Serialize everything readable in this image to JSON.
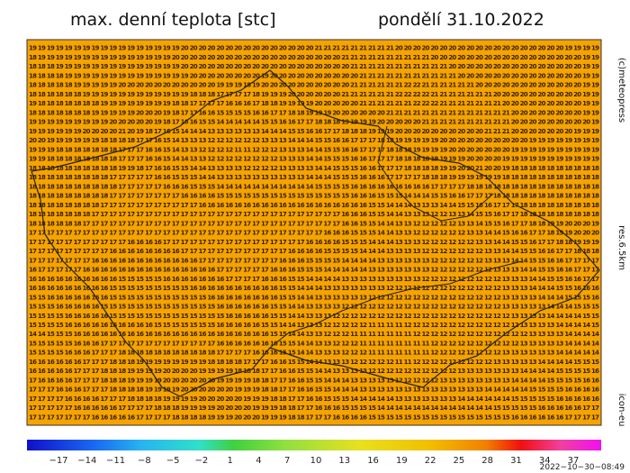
{
  "header": {
    "title": "max. denní teplota [stc]",
    "date": "pondělí 31.10.2022"
  },
  "side": {
    "copyright": "(c)meteopress",
    "resolution": "res.6.5km",
    "model": "icon-eu"
  },
  "colorbar_labels": [
    "−17",
    "−14",
    "−11",
    "−8",
    "−5",
    "−2",
    "1",
    "4",
    "7",
    "10",
    "13",
    "16",
    "19",
    "22",
    "25",
    "28",
    "31",
    "34",
    "37"
  ],
  "timestamp": "2022−10−30−08:49",
  "grid": [
    "19 19 19 19 19 19 19 19 19 19 19 19 19 19 19 19 19 20 20 20 20 20 20 20 20 20 20 20 20 20 20 20 21 21 21 21 21 21 21 21 21 20 20 20 20 20 20 20 20 20 20 20 20 20 20 20 20 20 20 20 19 19 19 19",
    "18 19 19 19 19 19 19 19 19 19 19 19 19 19 19 19 20 20 20 20 20 20 20 20 20 20 20 20 20 20 20 20 20 20 20 21 21 21 21 21 21 21 21 21 21 20 20 20 20 20 20 20 20 20 20 20 20 20 20 20 20 20 19 19",
    "18 18 18 19 19 19 19 19 19 19 19 19 19 19 19 19 19 20 20 20 20 20 20 20 20 20 20 20 20 20 20 20 20 20 20 20 21 21 21 21 21 21 21 21 21 21 21 20 20 20 20 20 20 20 20 20 20 20 20 20 20 20 19 19",
    "18 18 18 18 19 19 19 19 19 19 19 19 19 19 19 19 19 19 20 20 20 20 20 20 20 20 19 20 20 20 20 20 20 20 20 20 20 21 21 21 21 21 21 21 21 21 21 21 20 20 20 20 20 20 20 20 20 20 20 20 20 20 19 19",
    "18 18 18 18 18 19 19 19 19 19 20 20 20 20 20 20 20 20 20 20 20 19 19 19 18 19 20 20 20 20 20 20 20 20 20 20 21 21 21 21 21 21 22 22 21 21 21 21 21 21 20 20 20 20 20 20 20 20 20 20 20 20 19 19",
    "18 18 18 18 18 18 19 19 19 19 19 19 19 19 19 19 19 19 18 18 18 17 17 17 17 18 19 19 19 20 20 20 20 20 20 21 21 21 21 21 21 22 22 22 22 21 21 21 21 21 21 21 20 20 20 20 20 20 20 20 20 20 19 19",
    "19 18 18 18 18 18 18 18 19 19 19 19 19 19 19 19 18 18 17 17 17 17 16 16 16 17 18 18 19 19 19 19 20 20 20 20 20 21 21 21 21 21 21 22 22 22 21 21 21 21 21 21 21 20 20 20 20 20 20 20 20 20 19 19",
    "18 18 18 18 18 18 18 19 19 19 19 19 20 20 20 19 18 17 17 16 16 15 15 15 15 16 16 17 17 18 18 19 19 19 20 20 20 20 20 20 21 21 21 21 21 21 21 21 21 21 21 21 21 21 20 20 20 20 20 20 20 20 19 19",
    "19 19 19 19 19 19 19 19 19 20 20 20 20 20 19 18 17 16 16 15 15 14 14 14 14 14 15 15 16 16 17 17 18 18 18 19 19 19 19 20 20 20 20 20 21 21 21 21 21 21 21 21 21 21 20 20 20 20 20 20 20 20 20 19",
    "19 19 19 19 19 19 20 20 20 20 21 20 19 18 17 16 15 14 14 14 13 13 13 13 13 13 14 14 14 15 15 16 16 17 17 18 18 18 19 19 19 20 20 20 20 20 20 20 20 20 20 21 21 21 20 20 20 20 20 20 20 19 19 19",
    "20 20 19 19 19 19 19 19 18 18 18 18 17 17 16 15 14 13 13 13 12 12 12 12 12 12 13 13 13 14 14 14 15 15 16 16 17 17 17 18 18 19 19 19 19 19 20 20 20 20 20 20 20 20 20 20 19 19 19 19 19 19 19 19",
    "19 19 19 18 18 18 18 18 18 18 17 17 17 16 16 15 14 13 13 12 12 12 12 11 11 12 12 12 13 13 13 14 14 15 15 16 16 17 17 17 18 18 18 19 19 19 19 20 20 20 20 20 20 20 19 19 19 19 19 19 19 19 19 19",
    "19 19 18 18 18 18 18 18 18 18 17 17 17 16 16 15 14 14 13 13 12 12 12 12 12 12 12 12 13 13 13 14 14 15 15 15 16 16 17 17 17 18 18 18 18 19 19 19 19 20 20 20 20 19 19 19 19 19 19 19 19 19 19 19",
    "18 18 18 18 18 18 18 18 18 18 19 19 18 17 16 16 15 15 14 14 13 13 13 13 12 12 12 12 13 13 13 13 14 14 15 15 15 16 16 17 17 17 18 18 18 18 19 19 20 20 21 20 20 19 18 18 18 18 18 18 18 18 18 18",
    "18 18 18 18 18 18 18 18 18 17 17 17 17 17 16 16 15 15 15 14 14 13 13 13 13 13 13 13 13 13 13 14 14 14 15 15 15 16 16 16 17 17 17 17 18 18 18 19 19 19 19 19 19 18 18 18 18 18 18 18 18 18 18 18",
    "18 18 18 18 18 18 18 18 18 18 17 17 17 17 17 16 16 16 15 15 15 14 14 14 14 14 14 14 14 14 14 14 15 15 15 15 16 16 16 16 16 16 16 16 16 17 17 17 17 18 18 18 18 18 18 18 18 18 18 18 18 18 18 18",
    "18 18 18 18 18 18 18 18 18 17 17 17 17 17 17 17 17 16 16 16 16 15 15 15 15 15 15 15 15 15 15 15 15 15 15 15 16 16 16 15 15 15 14 14 14 15 15 16 16 17 17 17 18 18 18 18 18 18 18 18 18 18 18 18",
    "18 18 18 18 18 18 18 18 17 17 17 17 17 17 17 17 17 17 17 16 16 16 16 16 16 16 16 16 16 16 16 16 16 16 16 16 16 16 15 15 14 14 14 13 13 13 14 14 15 15 16 16 17 17 17 18 18 18 18 18 18 18 18 18",
    "18 18 18 18 18 18 18 17 17 17 17 17 17 17 17 17 17 17 17 17 17 17 17 17 17 17 17 17 17 17 17 17 17 17 17 16 16 16 15 15 14 14 13 13 13 12 12 13 13 14 15 15 16 17 17 18 18 18 18 18 18 18 18 18",
    "18 18 18 18 18 18 17 17 17 17 17 17 17 17 17 17 17 17 17 17 17 17 17 17 17 17 17 17 17 17 17 17 17 17 17 16 16 15 15 14 14 13 13 12 12 12 12 12 13 13 14 15 15 16 17 17 18 18 19 19 20 20 20 19",
    "17 17 17 17 17 17 17 17 17 17 17 17 17 17 17 17 17 17 17 17 17 17 17 17 17 17 17 17 17 17 17 17 17 16 16 16 15 15 15 14 14 13 13 12 12 12 12 12 12 13 13 14 14 15 16 16 17 17 18 19 19 20 20 20",
    "17 17 17 17 17 17 17 17 17 17 17 16 16 16 16 17 17 17 17 17 17 17 17 17 17 17 17 17 17 17 17 16 16 16 16 15 15 15 14 14 14 13 13 13 12 12 12 12 12 12 13 13 14 14 15 15 16 17 17 18 18 19 19 19",
    "17 17 17 17 17 17 17 17 17 16 16 16 16 16 16 16 16 17 17 17 17 17 17 17 17 17 17 17 17 16 16 16 16 15 15 15 15 14 14 14 13 13 13 13 12 12 12 12 12 12 12 13 13 14 14 15 15 16 16 17 17 18 18 18",
    "17 17 17 17 17 17 17 16 16 16 16 16 16 16 16 16 16 16 16 17 17 17 17 17 17 17 17 17 16 16 16 15 15 15 15 14 14 14 14 13 13 13 13 13 13 12 12 12 12 12 12 13 13 13 14 14 15 15 16 16 17 17 17 17",
    "16 17 17 17 17 17 16 16 16 16 16 16 16 16 16 16 16 16 16 16 16 17 17 17 17 17 17 16 16 16 15 15 15 14 14 14 14 14 13 13 13 13 13 13 13 12 12 12 12 12 12 12 13 13 13 14 14 15 15 16 16 17 17 17",
    "16 16 16 16 16 16 16 16 16 16 15 15 15 15 15 16 16 16 16 16 16 16 17 17 17 17 16 16 16 15 15 14 14 14 14 13 13 13 13 13 13 13 13 13 12 12 12 12 12 12 12 12 12 13 13 13 14 14 15 15 16 16 17 17",
    "16 16 16 16 16 16 16 16 16 15 15 15 15 15 15 15 15 15 16 16 16 16 16 16 16 16 16 16 15 15 14 14 14 13 13 13 13 13 13 13 12 12 12 12 12 12 12 12 12 12 12 12 12 13 13 13 14 14 14 15 15 16 16 16",
    "15 15 16 16 16 16 16 16 16 15 15 15 15 15 15 15 15 15 15 15 16 16 16 16 16 16 16 16 15 15 14 14 13 13 13 13 13 13 12 12 12 12 12 12 12 12 12 12 12 12 12 12 12 13 13 13 13 14 14 14 15 15 15 16",
    "15 15 15 16 16 16 16 16 15 15 15 15 15 15 15 15 15 15 15 15 15 16 16 16 16 16 16 15 15 14 14 13 13 13 13 12 12 12 12 12 12 12 12 12 12 12 12 12 12 12 12 12 12 13 13 13 13 13 14 14 14 15 15 15",
    "15 15 15 15 16 16 16 16 16 15 15 15 15 15 15 15 15 15 15 15 15 15 16 16 16 16 16 15 15 14 14 13 13 13 12 12 12 12 12 12 12 12 12 12 12 12 12 12 12 12 12 12 12 12 13 13 13 13 14 14 14 14 15 15",
    "15 15 15 15 16 16 16 16 16 16 16 16 16 16 15 15 15 15 15 15 15 16 16 16 16 16 15 15 14 14 13 13 13 12 12 12 12 12 11 11 11 11 12 12 12 12 12 12 12 12 12 12 12 12 12 13 13 13 13 14 14 14 14 15",
    "14 14 15 15 15 16 16 16 16 16 16 16 16 16 16 16 16 16 16 16 16 16 16 16 16 16 16 15 15 14 14 13 13 12 12 12 11 11 11 11 11 11 11 12 12 12 12 12 12 12 12 12 12 12 12 12 13 13 13 13 14 14 14 14",
    "15 15 15 15 15 16 16 16 17 17 17 17 17 17 17 17 17 17 17 17 17 16 16 16 16 16 16 16 15 15 14 14 13 13 12 12 12 11 11 11 11 11 11 11 11 12 12 12 12 12 12 12 12 12 12 13 13 13 13 13 14 14 14 14",
    "15 15 15 15 16 16 16 17 17 17 18 18 18 18 18 18 18 18 18 18 18 17 17 17 17 16 16 16 15 15 14 14 13 13 13 12 12 12 11 11 11 11 11 11 11 12 12 12 12 12 12 12 12 13 13 13 13 13 13 14 14 14 14 14",
    "16 16 16 16 16 16 17 17 17 18 18 18 19 19 19 19 19 19 19 19 18 18 18 18 17 17 17 16 16 15 15 14 14 13 13 13 12 12 12 12 12 11 11 12 12 12 12 12 12 12 12 12 13 13 13 13 13 14 14 14 14 15 15 15",
    "16 16 16 16 16 17 17 17 18 18 18 19 19 19 19 20 20 20 20 19 19 19 19 18 18 18 17 17 16 16 15 15 14 14 13 13 13 13 12 12 12 12 12 12 12 12 12 12 13 13 13 13 13 13 13 14 14 14 14 15 15 15 15 16",
    "17 16 16 16 16 17 17 17 18 18 18 19 19 19 19 20 20 20 20 20 20 19 19 19 19 18 18 17 17 16 16 15 15 14 14 14 13 13 13 13 13 12 12 12 12 12 13 13 13 13 13 13 13 13 14 14 14 14 15 15 15 15 16 16",
    "17 17 17 16 16 16 17 17 17 18 18 18 18 19 19 19 19 20 20 20 20 20 20 19 19 19 18 18 17 17 16 16 15 15 14 14 14 13 13 13 13 13 13 13 13 13 13 13 13 13 13 14 14 14 14 14 15 15 15 15 16 16 16 16",
    "17 17 17 17 16 16 16 16 17 17 17 18 18 18 18 19 19 19 19 20 20 20 20 20 19 19 19 18 18 17 17 16 16 15 15 15 14 14 14 14 14 13 13 13 13 13 13 13 14 14 14 14 14 14 15 15 15 15 15 16 16 16 16 16",
    "17 17 17 17 17 16 16 16 16 16 17 17 17 17 18 18 18 19 19 19 19 20 20 20 20 19 19 19 18 18 17 17 16 16 16 15 15 15 15 14 14 14 14 14 14 14 14 14 14 14 14 14 15 15 15 15 15 16 16 16 16 16 17 17",
    "17 17 17 17 17 17 17 16 16 16 16 16 17 17 17 17 18 18 18 18 19 19 19 20 20 20 19 19 19 18 18 17 17 17 16 16 16 16 15 15 15 15 15 15 15 15 15 15 15 15 15 15 15 15 16 16 16 16 16 16 17 17 17 17"
  ]
}
